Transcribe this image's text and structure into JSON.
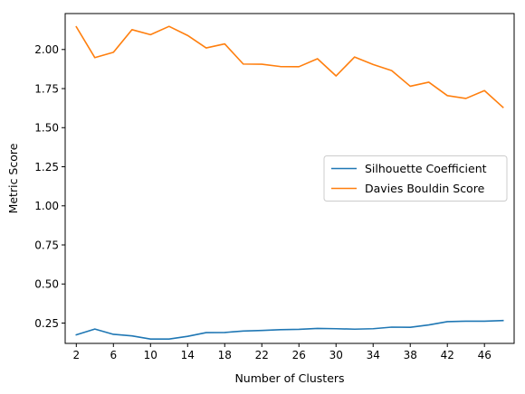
{
  "chart_data": {
    "type": "line",
    "title": "",
    "xlabel": "Number of Clusters",
    "ylabel": "Metric Score",
    "xlim": [
      0.8,
      49.2
    ],
    "ylim": [
      0.12,
      2.23
    ],
    "xticks": [
      "2",
      "6",
      "10",
      "14",
      "18",
      "22",
      "26",
      "30",
      "34",
      "38",
      "42",
      "46"
    ],
    "yticks": [
      "0.25",
      "0.50",
      "0.75",
      "1.00",
      "1.25",
      "1.50",
      "1.75",
      "2.00"
    ],
    "grid": false,
    "legend_position": "center-right",
    "x": [
      2,
      4,
      6,
      8,
      10,
      12,
      14,
      16,
      18,
      20,
      22,
      24,
      26,
      28,
      30,
      32,
      34,
      36,
      38,
      40,
      42,
      44,
      46,
      48
    ],
    "series": [
      {
        "name": "Silhouette Coefficient",
        "color": "#1f77b4",
        "values": [
          0.175,
          0.212,
          0.178,
          0.168,
          0.148,
          0.148,
          0.165,
          0.189,
          0.19,
          0.199,
          0.203,
          0.208,
          0.21,
          0.216,
          0.214,
          0.211,
          0.214,
          0.224,
          0.223,
          0.238,
          0.259,
          0.262,
          0.262,
          0.266
        ]
      },
      {
        "name": "Davies Bouldin Score",
        "color": "#ff7f0e",
        "values": [
          2.145,
          1.948,
          1.982,
          2.127,
          2.095,
          2.148,
          2.09,
          2.01,
          2.036,
          1.907,
          1.906,
          1.891,
          1.89,
          1.941,
          1.831,
          1.952,
          1.904,
          1.865,
          1.765,
          1.791,
          1.705,
          1.687,
          1.737,
          1.63
        ]
      }
    ]
  }
}
